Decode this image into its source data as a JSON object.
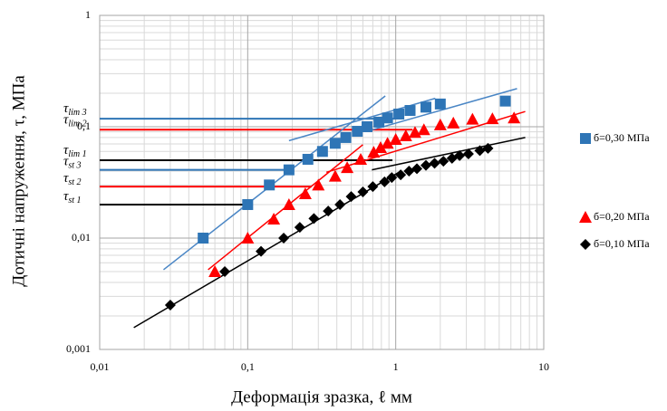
{
  "chart_data": {
    "type": "scatter",
    "xlabel": "Деформація зразка, ℓ мм",
    "ylabel": "Дотичні напруження, τ, МПа",
    "log_x": true,
    "log_y": true,
    "grid": true,
    "xlim": [
      0.01,
      10
    ],
    "ylim": [
      0.001,
      1
    ],
    "xticks": [
      {
        "value": 0.01,
        "label": "0,01"
      },
      {
        "value": 0.1,
        "label": "0,1"
      },
      1,
      10
    ],
    "yticks": [
      {
        "value": 0.001,
        "label": "0,001"
      },
      {
        "value": 0.01,
        "label": "0,01"
      },
      {
        "value": 0.1,
        "label": "0,1"
      },
      1
    ],
    "legend": "right",
    "series": [
      {
        "name": "б=0,30 МПа",
        "color": "#2e75b6",
        "marker": "square",
        "x": [
          0.05,
          0.1,
          0.14,
          0.19,
          0.255,
          0.32,
          0.39,
          0.46,
          0.55,
          0.64,
          0.77,
          0.88,
          1.05,
          1.25,
          1.6,
          2.0,
          5.5
        ],
        "values": [
          0.01,
          0.02,
          0.03,
          0.041,
          0.051,
          0.06,
          0.071,
          0.08,
          0.091,
          0.1,
          0.11,
          0.12,
          0.13,
          0.14,
          0.15,
          0.16,
          0.17
        ]
      },
      {
        "name": "б=0,20 МПа",
        "color": "#ff0000",
        "marker": "triangle",
        "x": [
          0.06,
          0.1,
          0.15,
          0.19,
          0.245,
          0.3,
          0.39,
          0.47,
          0.58,
          0.71,
          0.79,
          0.88,
          1.0,
          1.17,
          1.35,
          1.55,
          2.0,
          2.45,
          3.3,
          4.5,
          6.3
        ],
        "values": [
          0.005,
          0.01,
          0.0148,
          0.02,
          0.025,
          0.03,
          0.036,
          0.043,
          0.051,
          0.059,
          0.065,
          0.071,
          0.077,
          0.083,
          0.089,
          0.094,
          0.104,
          0.108,
          0.117,
          0.118,
          0.12
        ]
      },
      {
        "name": "б=0,10 МПа",
        "color": "#000000",
        "marker": "diamond",
        "x": [
          0.03,
          0.07,
          0.123,
          0.175,
          0.225,
          0.28,
          0.35,
          0.42,
          0.5,
          0.6,
          0.7,
          0.84,
          0.94,
          1.08,
          1.23,
          1.39,
          1.6,
          1.83,
          2.1,
          2.4,
          2.7,
          3.1,
          3.7,
          4.2
        ],
        "values": [
          0.0025,
          0.005,
          0.0076,
          0.01,
          0.0125,
          0.015,
          0.0175,
          0.02,
          0.0236,
          0.026,
          0.029,
          0.032,
          0.035,
          0.037,
          0.04,
          0.042,
          0.045,
          0.047,
          0.049,
          0.052,
          0.055,
          0.057,
          0.061,
          0.064
        ]
      }
    ],
    "trend_lines": [
      {
        "color": "#4a86c5",
        "x": [
          0.027,
          0.85
        ],
        "y": [
          0.0052,
          0.189
        ]
      },
      {
        "color": "#4a86c5",
        "x": [
          0.19,
          1.85
        ],
        "y": [
          0.075,
          0.18
        ]
      },
      {
        "color": "#4a86c5",
        "x": [
          0.64,
          6.6
        ],
        "y": [
          0.091,
          0.22
        ]
      },
      {
        "color": "#ff0000",
        "x": [
          0.054,
          0.6
        ],
        "y": [
          0.0052,
          0.069
        ]
      },
      {
        "color": "#ff0000",
        "x": [
          0.34,
          7.5
        ],
        "y": [
          0.039,
          0.137
        ]
      },
      {
        "color": "#000000",
        "x": [
          0.017,
          1.05
        ],
        "y": [
          0.00157,
          0.039
        ]
      },
      {
        "color": "#000000",
        "x": [
          0.69,
          7.5
        ],
        "y": [
          0.041,
          0.08
        ]
      }
    ],
    "levels": [
      {
        "symbol": "τ",
        "sub": "lim 3",
        "value": 0.118,
        "x_end": 1.0,
        "color": "#2e75b6"
      },
      {
        "symbol": "τ",
        "sub": "lim 2",
        "value": 0.094,
        "x_end": 1.3,
        "color": "#ff0000"
      },
      {
        "symbol": "τ",
        "sub": "lim 1",
        "value": 0.05,
        "x_end": 0.95,
        "color": "#000000"
      },
      {
        "symbol": "τ",
        "sub": "st 3",
        "value": 0.041,
        "x_end": 0.2,
        "color": "#2e75b6"
      },
      {
        "symbol": "τ",
        "sub": "st 2",
        "value": 0.029,
        "x_end": 0.27,
        "color": "#ff0000"
      },
      {
        "symbol": "τ",
        "sub": "st 1",
        "value": 0.02,
        "x_end": 0.1,
        "color": "#000000"
      }
    ]
  }
}
